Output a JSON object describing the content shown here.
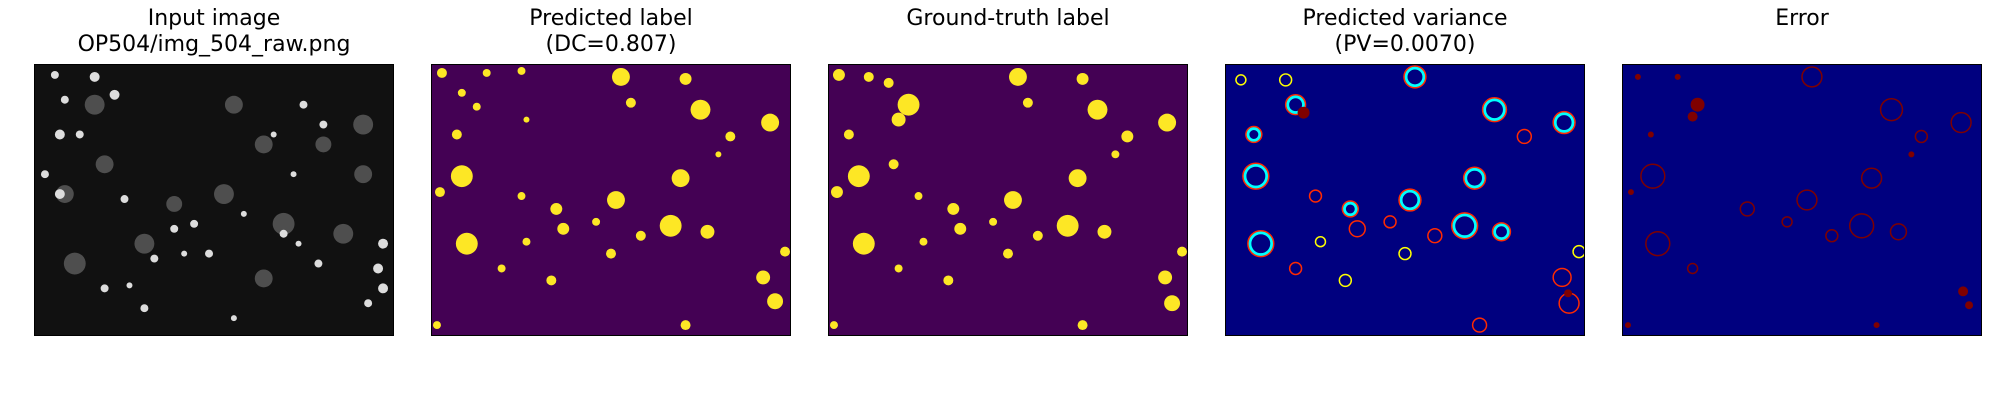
{
  "figure": {
    "panels": [
      {
        "title_line1": "Input image",
        "title_line2": "OP504/img_504_raw.png",
        "visual": "grayscale-nuclei-image"
      },
      {
        "title_line1": "Predicted label",
        "title_line2": "(DC=0.807)",
        "visual": "binary-label-map"
      },
      {
        "title_line1": "",
        "title_line2": "Ground-truth label",
        "visual": "binary-label-map"
      },
      {
        "title_line1": "Predicted variance",
        "title_line2": "(PV=0.0070)",
        "visual": "jet-variance-map"
      },
      {
        "title_line1": "",
        "title_line2": "Error",
        "visual": "error-map"
      }
    ]
  },
  "colors": {
    "background_dark": "#101010",
    "label_background": "#440154",
    "label_foreground": "#fde725",
    "variance_background": "#00007f",
    "error_background": "#00007f",
    "error_foreground": "#7f0000"
  }
}
